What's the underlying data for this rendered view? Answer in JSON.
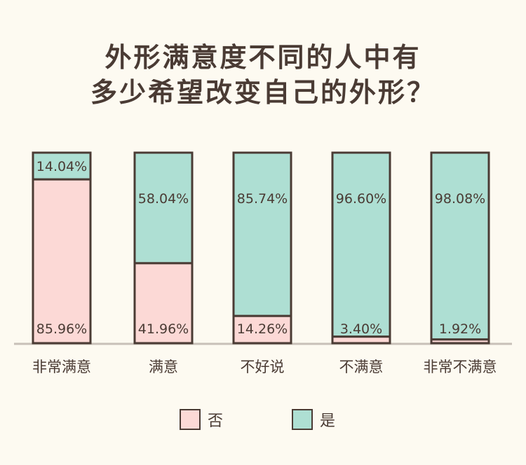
{
  "chart_data": {
    "type": "bar",
    "stacked": true,
    "title": [
      "外形满意度不同的人中有",
      "多少希望改变自己的外形？"
    ],
    "categories": [
      "非常满意",
      "满意",
      "不好说",
      "不满意",
      "非常不满意"
    ],
    "series": [
      {
        "name": "否",
        "color": "#fcd9d6",
        "values": [
          85.96,
          41.96,
          14.26,
          3.4,
          1.92
        ]
      },
      {
        "name": "是",
        "color": "#aedfd3",
        "values": [
          14.04,
          58.04,
          85.74,
          96.6,
          98.08
        ]
      }
    ],
    "value_labels": {
      "否": [
        "85.96%",
        "41.96%",
        "14.26%",
        "3.40%",
        "1.92%"
      ],
      "是": [
        "14.04%",
        "58.04%",
        "85.74%",
        "96.60%",
        "98.08%"
      ]
    },
    "ylim": [
      0,
      100
    ],
    "grid": false,
    "legend": "bottom",
    "baseline_color": "#c8c0b8",
    "outline_color": "#4a3b34"
  }
}
